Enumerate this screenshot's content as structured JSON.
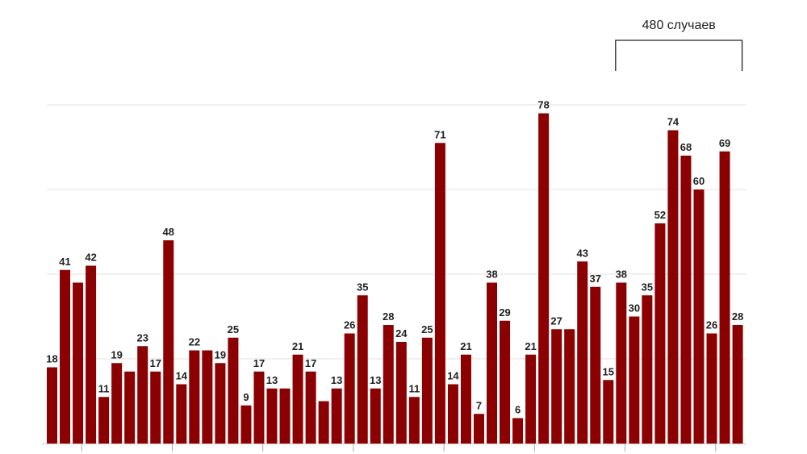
{
  "chart_data": {
    "type": "bar",
    "values": [
      18,
      41,
      38,
      42,
      11,
      19,
      17,
      23,
      17,
      48,
      14,
      22,
      22,
      19,
      25,
      9,
      17,
      13,
      13,
      21,
      17,
      10,
      13,
      26,
      35,
      13,
      28,
      24,
      11,
      25,
      71,
      14,
      21,
      7,
      38,
      29,
      6,
      21,
      78,
      27,
      27,
      43,
      37,
      15,
      38,
      30,
      35,
      52,
      74,
      68,
      60,
      26,
      69,
      28
    ],
    "data_labels": [
      "18",
      "41",
      "",
      "42",
      "11",
      "19",
      "",
      "23",
      "17",
      "48",
      "14",
      "22",
      "",
      "19",
      "25",
      "9",
      "17",
      "13",
      "",
      "21",
      "17",
      "",
      "13",
      "26",
      "35",
      "13",
      "28",
      "24",
      "11",
      "25",
      "71",
      "14",
      "21",
      "7",
      "38",
      "29",
      "6",
      "21",
      "78",
      "27",
      "",
      "43",
      "37",
      "15",
      "38",
      "30",
      "35",
      "52",
      "74",
      "68",
      "60",
      "26",
      "69",
      "28"
    ],
    "ylim": [
      0,
      80
    ],
    "grid": true,
    "bar_color": "#8b0000",
    "annotation": {
      "label": "480 случаев",
      "start_index": 44,
      "end_index": 53
    }
  }
}
